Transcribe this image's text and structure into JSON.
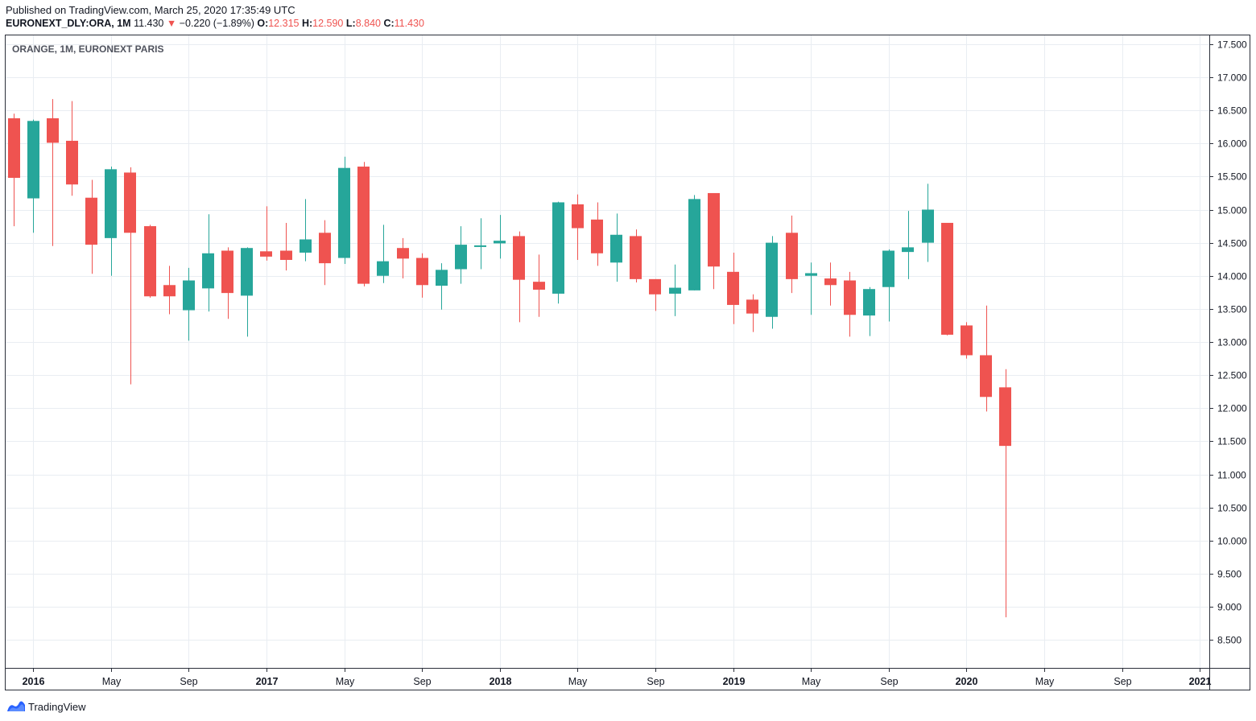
{
  "header": {
    "published": "Published on TradingView.com, March 25, 2020 17:35:49 UTC",
    "symbol": "EURONEXT_DLY:ORA, 1M",
    "last": "11.430",
    "arrow": "▼",
    "change": "−0.220 (−1.89%)",
    "o_label": "O:",
    "o_value": "12.315",
    "h_label": "H:",
    "h_value": "12.590",
    "l_label": "L:",
    "l_value": "8.840",
    "c_label": "C:",
    "c_value": "11.430"
  },
  "legend_title": "ORANGE, 1M, EURONEXT PARIS",
  "footer": {
    "brand": "TradingView"
  },
  "colors": {
    "up": "#26a69a",
    "down": "#ef5350",
    "grid": "#e9edf2",
    "axis": "#2a2e39"
  },
  "chart_data": {
    "type": "candlestick",
    "title": "ORANGE, 1M, EURONEXT PARIS",
    "ylim": [
      8.2,
      17.7
    ],
    "y_ticks": [
      "8.500",
      "9.000",
      "9.500",
      "10.000",
      "10.500",
      "11.000",
      "11.500",
      "12.000",
      "12.500",
      "13.000",
      "13.500",
      "14.000",
      "14.500",
      "15.000",
      "15.500",
      "16.000",
      "16.500",
      "17.000",
      "17.500"
    ],
    "x_ticks": [
      {
        "label": "2016",
        "month": "2016-01",
        "bold": true
      },
      {
        "label": "May",
        "month": "2016-05",
        "bold": false
      },
      {
        "label": "Sep",
        "month": "2016-09",
        "bold": false
      },
      {
        "label": "2017",
        "month": "2017-01",
        "bold": true
      },
      {
        "label": "May",
        "month": "2017-05",
        "bold": false
      },
      {
        "label": "Sep",
        "month": "2017-09",
        "bold": false
      },
      {
        "label": "2018",
        "month": "2018-01",
        "bold": true
      },
      {
        "label": "May",
        "month": "2018-05",
        "bold": false
      },
      {
        "label": "Sep",
        "month": "2018-09",
        "bold": false
      },
      {
        "label": "2019",
        "month": "2019-01",
        "bold": true
      },
      {
        "label": "May",
        "month": "2019-05",
        "bold": false
      },
      {
        "label": "Sep",
        "month": "2019-09",
        "bold": false
      },
      {
        "label": "2020",
        "month": "2020-01",
        "bold": true
      },
      {
        "label": "May",
        "month": "2020-05",
        "bold": false
      },
      {
        "label": "Sep",
        "month": "2020-09",
        "bold": false
      },
      {
        "label": "2021",
        "month": "2021-01",
        "bold": true
      }
    ],
    "candles": [
      {
        "date": "2015-12",
        "o": 16.38,
        "h": 16.45,
        "l": 14.75,
        "c": 15.48
      },
      {
        "date": "2016-01",
        "o": 15.17,
        "h": 16.36,
        "l": 14.65,
        "c": 16.34
      },
      {
        "date": "2016-02",
        "o": 16.38,
        "h": 16.67,
        "l": 14.45,
        "c": 16.01
      },
      {
        "date": "2016-03",
        "o": 16.04,
        "h": 16.64,
        "l": 15.21,
        "c": 15.38
      },
      {
        "date": "2016-04",
        "o": 15.18,
        "h": 15.45,
        "l": 14.03,
        "c": 14.47
      },
      {
        "date": "2016-05",
        "o": 14.57,
        "h": 15.65,
        "l": 14.0,
        "c": 15.61
      },
      {
        "date": "2016-06",
        "o": 15.56,
        "h": 15.64,
        "l": 12.36,
        "c": 14.65
      },
      {
        "date": "2016-07",
        "o": 14.75,
        "h": 14.77,
        "l": 13.67,
        "c": 13.69
      },
      {
        "date": "2016-08",
        "o": 13.86,
        "h": 14.15,
        "l": 13.42,
        "c": 13.69
      },
      {
        "date": "2016-09",
        "o": 13.48,
        "h": 14.12,
        "l": 13.02,
        "c": 13.93
      },
      {
        "date": "2016-10",
        "o": 13.81,
        "h": 14.93,
        "l": 13.46,
        "c": 14.34
      },
      {
        "date": "2016-11",
        "o": 14.38,
        "h": 14.43,
        "l": 13.35,
        "c": 13.74
      },
      {
        "date": "2016-12",
        "o": 13.7,
        "h": 14.43,
        "l": 13.08,
        "c": 14.42
      },
      {
        "date": "2017-01",
        "o": 14.37,
        "h": 15.05,
        "l": 14.23,
        "c": 14.29
      },
      {
        "date": "2017-02",
        "o": 14.38,
        "h": 14.8,
        "l": 14.08,
        "c": 14.24
      },
      {
        "date": "2017-03",
        "o": 14.35,
        "h": 15.16,
        "l": 14.22,
        "c": 14.55
      },
      {
        "date": "2017-04",
        "o": 14.65,
        "h": 14.84,
        "l": 13.86,
        "c": 14.19
      },
      {
        "date": "2017-05",
        "o": 14.27,
        "h": 15.8,
        "l": 14.18,
        "c": 15.63
      },
      {
        "date": "2017-06",
        "o": 15.65,
        "h": 15.72,
        "l": 13.84,
        "c": 13.88
      },
      {
        "date": "2017-07",
        "o": 14.0,
        "h": 14.77,
        "l": 13.89,
        "c": 14.22
      },
      {
        "date": "2017-08",
        "o": 14.42,
        "h": 14.57,
        "l": 13.96,
        "c": 14.26
      },
      {
        "date": "2017-09",
        "o": 14.27,
        "h": 14.34,
        "l": 13.67,
        "c": 13.86
      },
      {
        "date": "2017-10",
        "o": 13.85,
        "h": 14.19,
        "l": 13.49,
        "c": 14.09
      },
      {
        "date": "2017-11",
        "o": 14.1,
        "h": 14.75,
        "l": 13.88,
        "c": 14.47
      },
      {
        "date": "2017-12",
        "o": 14.45,
        "h": 14.87,
        "l": 14.1,
        "c": 14.46
      },
      {
        "date": "2018-01",
        "o": 14.49,
        "h": 14.92,
        "l": 14.26,
        "c": 14.53
      },
      {
        "date": "2018-02",
        "o": 14.6,
        "h": 14.67,
        "l": 13.3,
        "c": 13.94
      },
      {
        "date": "2018-03",
        "o": 13.91,
        "h": 14.32,
        "l": 13.38,
        "c": 13.79
      },
      {
        "date": "2018-04",
        "o": 13.73,
        "h": 15.12,
        "l": 13.58,
        "c": 15.11
      },
      {
        "date": "2018-05",
        "o": 15.08,
        "h": 15.23,
        "l": 14.24,
        "c": 14.72
      },
      {
        "date": "2018-06",
        "o": 14.85,
        "h": 15.11,
        "l": 14.15,
        "c": 14.34
      },
      {
        "date": "2018-07",
        "o": 14.2,
        "h": 14.94,
        "l": 13.91,
        "c": 14.62
      },
      {
        "date": "2018-08",
        "o": 14.6,
        "h": 14.7,
        "l": 13.9,
        "c": 13.95
      },
      {
        "date": "2018-09",
        "o": 13.95,
        "h": 13.95,
        "l": 13.47,
        "c": 13.72
      },
      {
        "date": "2018-10",
        "o": 13.73,
        "h": 14.17,
        "l": 13.39,
        "c": 13.82
      },
      {
        "date": "2018-11",
        "o": 13.78,
        "h": 15.22,
        "l": 13.78,
        "c": 15.16
      },
      {
        "date": "2018-12",
        "o": 15.25,
        "h": 15.25,
        "l": 13.8,
        "c": 14.14
      },
      {
        "date": "2019-01",
        "o": 14.06,
        "h": 14.35,
        "l": 13.27,
        "c": 13.56
      },
      {
        "date": "2019-02",
        "o": 13.64,
        "h": 13.72,
        "l": 13.15,
        "c": 13.43
      },
      {
        "date": "2019-03",
        "o": 13.38,
        "h": 14.6,
        "l": 13.2,
        "c": 14.5
      },
      {
        "date": "2019-04",
        "o": 14.65,
        "h": 14.91,
        "l": 13.74,
        "c": 13.95
      },
      {
        "date": "2019-05",
        "o": 14.0,
        "h": 14.2,
        "l": 13.41,
        "c": 14.04
      },
      {
        "date": "2019-06",
        "o": 13.96,
        "h": 14.2,
        "l": 13.55,
        "c": 13.86
      },
      {
        "date": "2019-07",
        "o": 13.93,
        "h": 14.06,
        "l": 13.08,
        "c": 13.41
      },
      {
        "date": "2019-08",
        "o": 13.4,
        "h": 13.83,
        "l": 13.09,
        "c": 13.8
      },
      {
        "date": "2019-09",
        "o": 13.83,
        "h": 14.4,
        "l": 13.31,
        "c": 14.38
      },
      {
        "date": "2019-10",
        "o": 14.36,
        "h": 14.98,
        "l": 13.95,
        "c": 14.43
      },
      {
        "date": "2019-11",
        "o": 14.5,
        "h": 15.39,
        "l": 14.21,
        "c": 15.0
      },
      {
        "date": "2019-12",
        "o": 14.8,
        "h": 14.8,
        "l": 13.1,
        "c": 13.11
      },
      {
        "date": "2020-01",
        "o": 13.25,
        "h": 13.3,
        "l": 12.75,
        "c": 12.8
      },
      {
        "date": "2020-02",
        "o": 12.8,
        "h": 13.55,
        "l": 11.95,
        "c": 12.17
      },
      {
        "date": "2020-03",
        "o": 12.315,
        "h": 12.59,
        "l": 8.84,
        "c": 11.43
      }
    ]
  }
}
